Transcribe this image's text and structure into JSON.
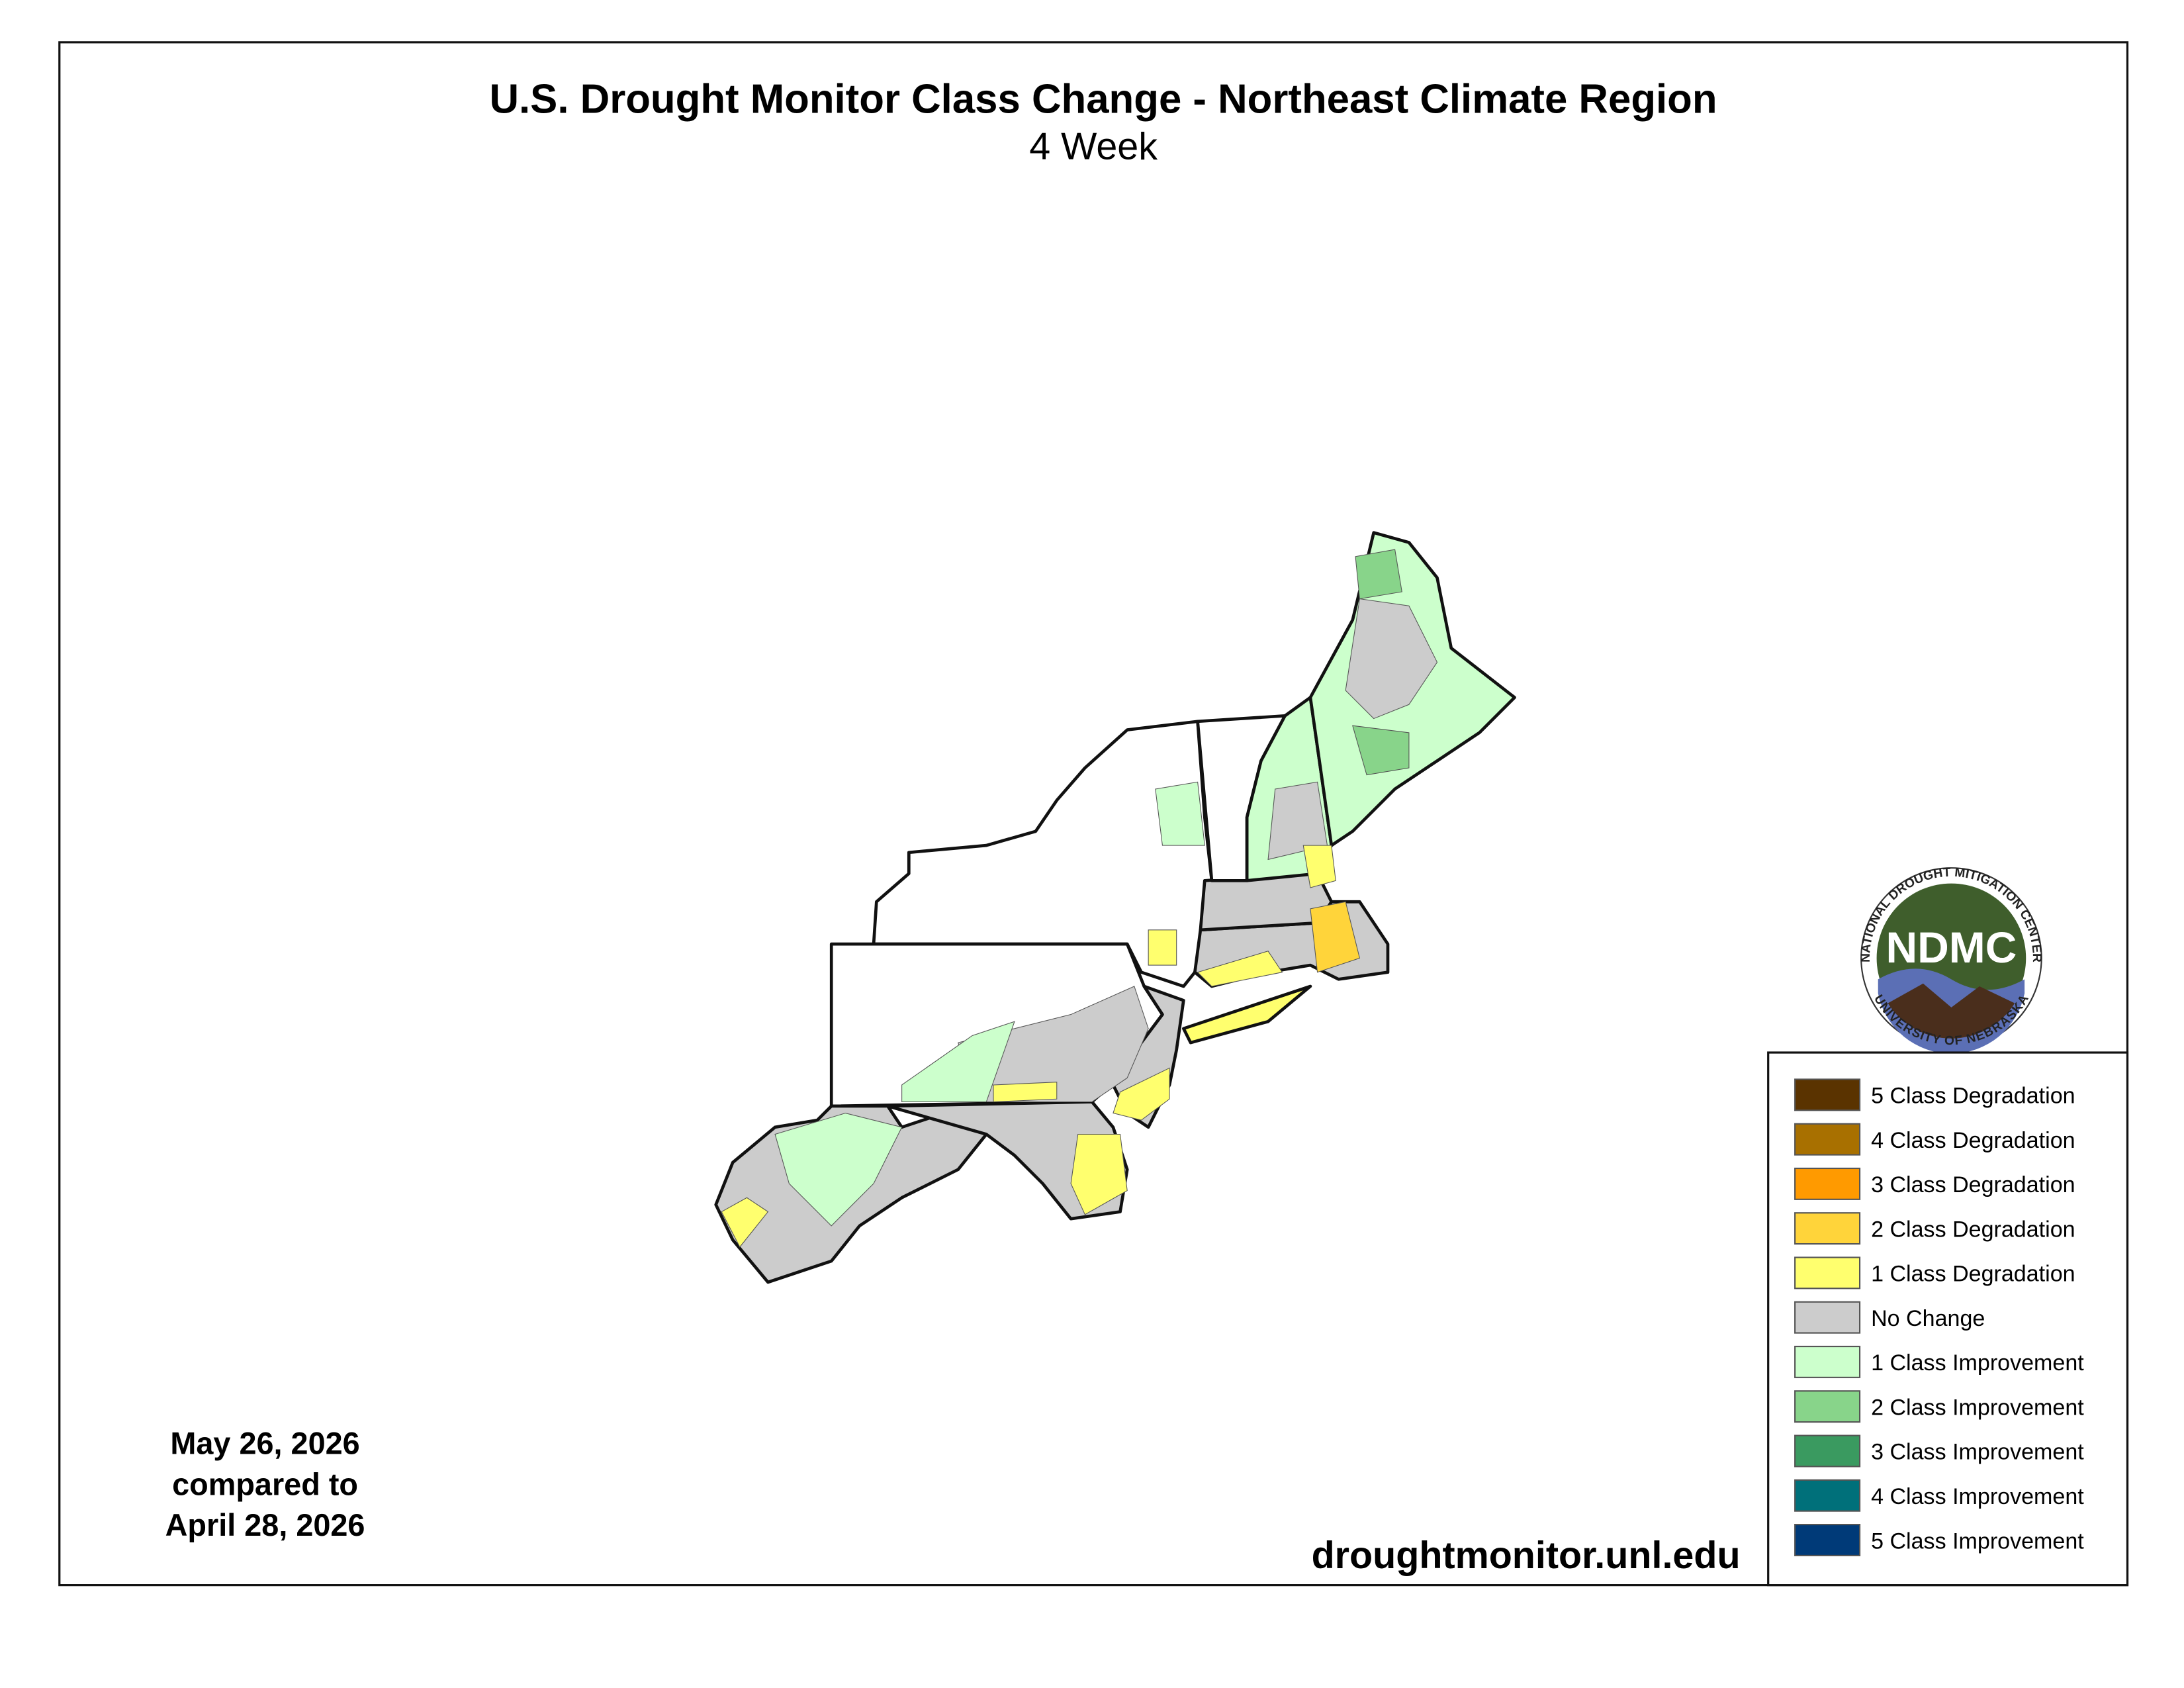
{
  "title": "U.S. Drought Monitor Class Change - Northeast Climate Region",
  "subtitle": "4 Week",
  "date_lines": [
    "May 26, 2026",
    "compared to",
    "April 28, 2026"
  ],
  "website": "droughtmonitor.unl.edu",
  "logo": {
    "acronym": "NDMC",
    "top_text": "NATIONAL DROUGHT MITIGATION CENTER",
    "bottom_text": "UNIVERSITY OF NEBRASKA"
  },
  "legend": [
    {
      "label": "5 Class Degradation",
      "color": "#5a3300"
    },
    {
      "label": "4 Class Degradation",
      "color": "#a87000"
    },
    {
      "label": "3 Class Degradation",
      "color": "#ff9a00"
    },
    {
      "label": "2 Class Degradation",
      "color": "#ffd43a"
    },
    {
      "label": "1 Class Degradation",
      "color": "#ffff6e"
    },
    {
      "label": "No Change",
      "color": "#cccccc"
    },
    {
      "label": "1 Class Improvement",
      "color": "#ccffcc"
    },
    {
      "label": "2 Class Improvement",
      "color": "#88d48a"
    },
    {
      "label": "3 Class Improvement",
      "color": "#3a9a60"
    },
    {
      "label": "4 Class Improvement",
      "color": "#00707a"
    },
    {
      "label": "5 Class Improvement",
      "color": "#003a78"
    }
  ]
}
